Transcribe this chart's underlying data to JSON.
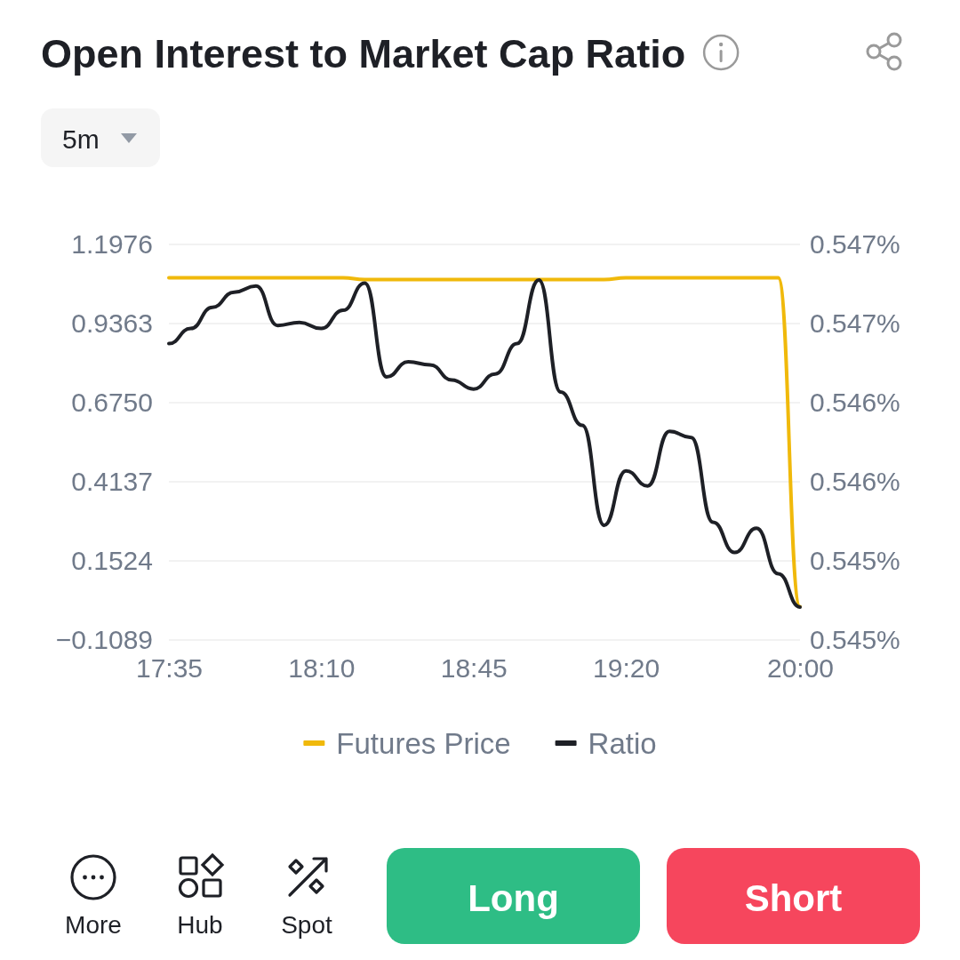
{
  "chart_data": {
    "type": "line",
    "title": "Open Interest to Market Cap Ratio",
    "x": [
      17.5833,
      17.6667,
      17.75,
      17.8333,
      17.9167,
      18,
      18.0833,
      18.1667,
      18.25,
      18.3333,
      18.4167,
      18.5,
      18.5833,
      18.6667,
      18.75,
      18.8333,
      18.9167,
      19,
      19.0833,
      19.1667,
      19.25,
      19.3333,
      19.4167,
      19.5,
      19.5833,
      19.6667,
      19.75,
      19.8333,
      19.9167,
      20
    ],
    "xlim": [
      17.5833,
      20
    ],
    "xticks": [
      {
        "value": 17.5833,
        "label": "17:35"
      },
      {
        "value": 18.1667,
        "label": "18:10"
      },
      {
        "value": 18.75,
        "label": "18:45"
      },
      {
        "value": 19.3333,
        "label": "19:20"
      },
      {
        "value": 20,
        "label": "20:00"
      }
    ],
    "ylim": [
      -0.1089,
      1.1976
    ],
    "yticks": [
      {
        "value": -0.1089,
        "label": "−0.1089"
      },
      0.1524,
      0.4137,
      {
        "value": 0.675,
        "label": "0.6750"
      },
      0.9363,
      1.1976
    ],
    "y2lim": [
      0.5448,
      0.54705
    ],
    "y2ticks": [
      {
        "value": 0.5448,
        "label": "0.545%"
      },
      {
        "value": 0.54525,
        "label": "0.545%"
      },
      {
        "value": 0.5457,
        "label": "0.546%"
      },
      {
        "value": 0.54615,
        "label": "0.546%"
      },
      {
        "value": 0.5466,
        "label": "0.547%"
      },
      {
        "value": 0.54705,
        "label": "0.547%"
      }
    ],
    "series": [
      {
        "name": "Futures Price",
        "color": "#f0b90b",
        "axis": "y2",
        "values": [
          0.54686,
          0.54686,
          0.54686,
          0.54686,
          0.54686,
          0.54686,
          0.54686,
          0.54686,
          0.54686,
          0.54685,
          0.54685,
          0.54685,
          0.54685,
          0.54685,
          0.54685,
          0.54685,
          0.54685,
          0.54685,
          0.54685,
          0.54685,
          0.54685,
          0.54686,
          0.54686,
          0.54686,
          0.54686,
          0.54686,
          0.54686,
          0.54686,
          0.54686,
          0.54499
        ]
      },
      {
        "name": "Ratio",
        "color": "#1e2026",
        "values": [
          0.87,
          0.92,
          0.99,
          1.04,
          1.06,
          0.93,
          0.94,
          0.92,
          0.98,
          1.07,
          0.76,
          0.81,
          0.8,
          0.75,
          0.72,
          0.77,
          0.87,
          1.08,
          0.71,
          0.6,
          0.27,
          0.45,
          0.4,
          0.58,
          0.56,
          0.28,
          0.18,
          0.26,
          0.11,
          0.0
        ]
      }
    ],
    "grid": "y",
    "legend": "bottom",
    "annotations": [
      "5m",
      "More",
      "Hub",
      "Spot",
      "Long",
      "Short"
    ]
  }
}
